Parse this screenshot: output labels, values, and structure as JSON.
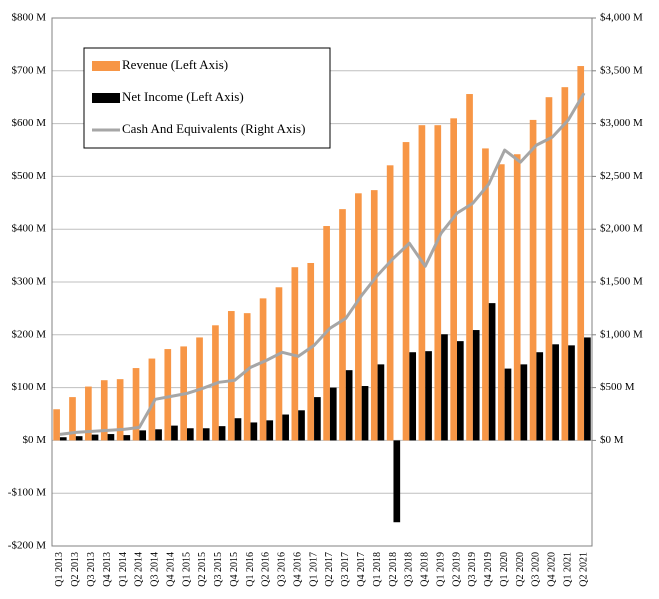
{
  "chart_data": {
    "type": "bar",
    "categories": [
      "Q1 2013",
      "Q2 2013",
      "Q3 2013",
      "Q4 2013",
      "Q1 2014",
      "Q2 2014",
      "Q3 2014",
      "Q4 2014",
      "Q1 2015",
      "Q2 2015",
      "Q3 2015",
      "Q4 2015",
      "Q1 2016",
      "Q2 2016",
      "Q3 2016",
      "Q4 2016",
      "Q1 2017",
      "Q2 2017",
      "Q3 2017",
      "Q4 2017",
      "Q1 2018",
      "Q2 2018",
      "Q3 2018",
      "Q4 2018",
      "Q1 2019",
      "Q2 2019",
      "Q3 2019",
      "Q4 2019",
      "Q1 2020",
      "Q2 2020",
      "Q3 2020",
      "Q4 2020",
      "Q1 2021",
      "Q2 2021"
    ],
    "series": [
      {
        "name": "Revenue (Left Axis)",
        "color": "#f79646",
        "type": "bar",
        "values": [
          59,
          82,
          102,
          114,
          116,
          137,
          155,
          173,
          178,
          195,
          218,
          245,
          241,
          269,
          290,
          328,
          336,
          406,
          438,
          468,
          474,
          521,
          565,
          597,
          597,
          610,
          656,
          553,
          523,
          542,
          607,
          650,
          669,
          709
        ]
      },
      {
        "name": "Net Income (Left Axis)",
        "color": "#000000",
        "type": "bar",
        "values": [
          6,
          8,
          11,
          12,
          10,
          19,
          21,
          28,
          23,
          23,
          27,
          42,
          34,
          38,
          49,
          57,
          82,
          100,
          133,
          103,
          144,
          -155,
          167,
          169,
          201,
          188,
          209,
          260,
          136,
          144,
          167,
          182,
          180,
          195
        ]
      },
      {
        "name": "Cash And Equivalents (Right Axis)",
        "color": "#a6a6a6",
        "type": "line",
        "axis": "y2",
        "values": [
          57,
          76,
          85,
          95,
          104,
          123,
          389,
          417,
          445,
          493,
          550,
          569,
          692,
          758,
          834,
          796,
          900,
          1062,
          1156,
          1374,
          1564,
          1725,
          1867,
          1649,
          1962,
          2152,
          2246,
          2427,
          2749,
          2635,
          2796,
          2872,
          3033,
          3289
        ]
      }
    ],
    "ylim": [
      -200,
      800
    ],
    "yticks": [
      {
        "value": -200,
        "label": "-$200 M"
      },
      {
        "value": -100,
        "label": "-$100 M"
      },
      {
        "value": 0,
        "label": "$0 M"
      },
      {
        "value": 100,
        "label": "$100 M"
      },
      {
        "value": 200,
        "label": "$200 M"
      },
      {
        "value": 300,
        "label": "$300 M"
      },
      {
        "value": 400,
        "label": "$400 M"
      },
      {
        "value": 500,
        "label": "$500 M"
      },
      {
        "value": 600,
        "label": "$600 M"
      },
      {
        "value": 700,
        "label": "$700 M"
      },
      {
        "value": 800,
        "label": "$800 M"
      }
    ],
    "y2lim": [
      -1000,
      4000
    ],
    "y2ticks": [
      {
        "value": 0,
        "label": "$0 M"
      },
      {
        "value": 500,
        "label": "$500 M"
      },
      {
        "value": 1000,
        "label": "$1,000 M"
      },
      {
        "value": 1500,
        "label": "$1,500 M"
      },
      {
        "value": 2000,
        "label": "$2,000 M"
      },
      {
        "value": 2500,
        "label": "$2,500 M"
      },
      {
        "value": 3000,
        "label": "$3,000 M"
      },
      {
        "value": 3500,
        "label": "$3,500 M"
      },
      {
        "value": 4000,
        "label": "$4,000 M"
      }
    ],
    "grid": true,
    "legend": "upper-left"
  }
}
